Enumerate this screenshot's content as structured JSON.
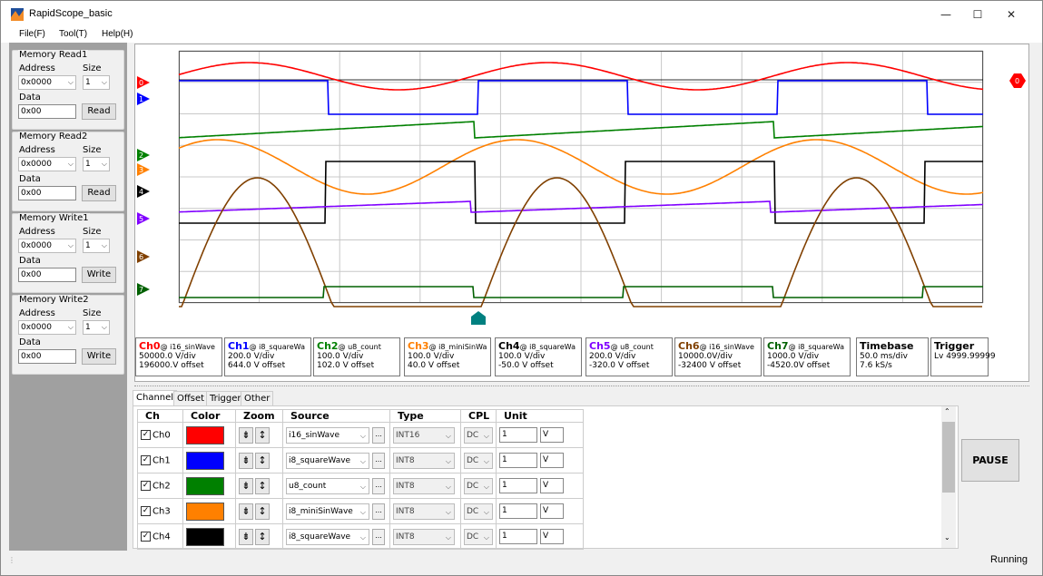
{
  "window": {
    "title": "RapidScope_basic",
    "min": "—",
    "max": "☐",
    "close": "✕"
  },
  "menu": [
    "File(F)",
    "Tool(T)",
    "Help(H)"
  ],
  "memory": [
    {
      "title": "Memory Read1",
      "address_label": "Address",
      "size_label": "Size",
      "address": "0x0000",
      "size": "1",
      "data_label": "Data",
      "data": "0x00",
      "button": "Read"
    },
    {
      "title": "Memory Read2",
      "address_label": "Address",
      "size_label": "Size",
      "address": "0x0000",
      "size": "1",
      "data_label": "Data",
      "data": "0x00",
      "button": "Read"
    },
    {
      "title": "Memory Write1",
      "address_label": "Address",
      "size_label": "Size",
      "address": "0x0000",
      "size": "1",
      "data_label": "Data",
      "data": "0x00",
      "button": "Write"
    },
    {
      "title": "Memory Write2",
      "address_label": "Address",
      "size_label": "Size",
      "address": "0x0000",
      "size": "1",
      "data_label": "Data",
      "data": "0x00",
      "button": "Write"
    }
  ],
  "markers": [
    "0",
    "1",
    "2",
    "3",
    "4",
    "5",
    "6",
    "7"
  ],
  "trigger_marker": "0",
  "channels": [
    {
      "name": "Ch0",
      "var": "@ i16_sinWave",
      "vdiv": "50000.0 V/div",
      "offset": "196000.V offset",
      "color": "#ff0000"
    },
    {
      "name": "Ch1",
      "var": "@ i8_squareWa",
      "vdiv": "200.0   V/div",
      "offset": "644.0   V offset",
      "color": "#0000ff"
    },
    {
      "name": "Ch2",
      "var": "@ u8_count",
      "vdiv": "100.0   V/div",
      "offset": "102.0   V offset",
      "color": "#008000"
    },
    {
      "name": "Ch3",
      "var": "@ i8_miniSinWa",
      "vdiv": "100.0   V/div",
      "offset": "40.0    V offset",
      "color": "#ff8000"
    },
    {
      "name": "Ch4",
      "var": "@ i8_squareWa",
      "vdiv": "100.0   V/div",
      "offset": "-50.0   V offset",
      "color": "#000000"
    },
    {
      "name": "Ch5",
      "var": "@ u8_count",
      "vdiv": "200.0   V/div",
      "offset": "-320.0  V offset",
      "color": "#8000ff"
    },
    {
      "name": "Ch6",
      "var": "@ i16_sinWave",
      "vdiv": "10000.0V/div",
      "offset": "-32400 V offset",
      "color": "#804000"
    },
    {
      "name": "Ch7",
      "var": "@ i8_squareWa",
      "vdiv": "1000.0 V/div",
      "offset": "-4520.0V offset",
      "color": "#006000"
    }
  ],
  "timebase": {
    "title": "Timebase",
    "line1": "50.0  ms/div",
    "line2": "7.6   kS/s"
  },
  "trigger": {
    "title": "Trigger",
    "line1": "Lv 4999.99999"
  },
  "tabs": [
    "Channel",
    "Offset",
    "Trigger",
    "Other"
  ],
  "table": {
    "headers": [
      "Ch",
      "Color",
      "Zoom",
      "Source",
      "Type",
      "CPL",
      "Unit"
    ],
    "rows": [
      {
        "ch": "Ch0",
        "color": "#ff0000",
        "source": "i16_sinWave",
        "type": "INT16",
        "cpl": "DC",
        "scale": "1",
        "unit": "V"
      },
      {
        "ch": "Ch1",
        "color": "#0000ff",
        "source": "i8_squareWave",
        "type": "INT8",
        "cpl": "DC",
        "scale": "1",
        "unit": "V"
      },
      {
        "ch": "Ch2",
        "color": "#008000",
        "source": "u8_count",
        "type": "INT8",
        "cpl": "DC",
        "scale": "1",
        "unit": "V"
      },
      {
        "ch": "Ch3",
        "color": "#ff8000",
        "source": "i8_miniSinWave",
        "type": "INT8",
        "cpl": "DC",
        "scale": "1",
        "unit": "V"
      },
      {
        "ch": "Ch4",
        "color": "#000000",
        "source": "i8_squareWave",
        "type": "INT8",
        "cpl": "DC",
        "scale": "1",
        "unit": "V"
      }
    ]
  },
  "pause_label": "PAUSE",
  "status": "Running"
}
